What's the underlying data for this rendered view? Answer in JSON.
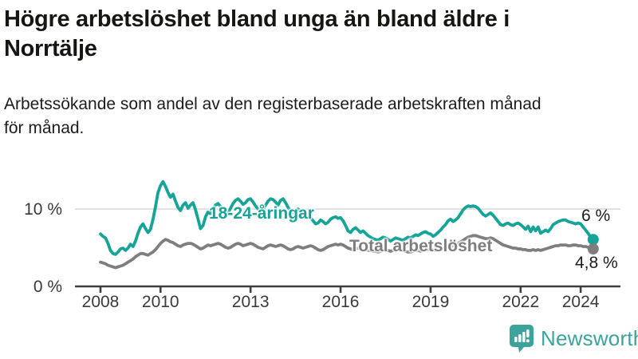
{
  "header": {
    "title": "Högre arbetslöshet bland unga än bland äldre i\nNorrtälje",
    "subtitle": "Arbetssökande som andel av den registerbaserade arbetskraften månad\nför månad."
  },
  "branding": {
    "logo_text": "Newsworthy",
    "logo_color": "#3ba39c"
  },
  "chart_data": {
    "type": "line",
    "title": "Högre arbetslöshet bland unga än bland äldre i Norrtälje",
    "subtitle": "Arbetssökande som andel av den registerbaserade arbetskraften månad för månad.",
    "xlabel": "",
    "ylabel": "",
    "ylim": [
      0,
      14
    ],
    "xlim": [
      2007.8,
      2025.3
    ],
    "grid": "horizontal-10-only",
    "legend_position": "inline-labels",
    "x_start_year": 2008,
    "x_step_months": 1,
    "y_ticks": [
      {
        "value": 10,
        "label": "10 %"
      },
      {
        "value": 0,
        "label": "0 %"
      }
    ],
    "x_ticks": [
      {
        "value": 2008,
        "label": "2008"
      },
      {
        "value": 2010,
        "label": "2010"
      },
      {
        "value": 2013,
        "label": "2013"
      },
      {
        "value": 2016,
        "label": "2016"
      },
      {
        "value": 2019,
        "label": "2019"
      },
      {
        "value": 2022,
        "label": "2022"
      },
      {
        "value": 2024,
        "label": "2024"
      }
    ],
    "series": [
      {
        "name": "18-24-åringar",
        "color": "#16a398",
        "end_label": "6 %",
        "end_value": 6.0,
        "values": [
          6.7,
          6.4,
          6.2,
          5.5,
          4.6,
          4.2,
          4.1,
          4.4,
          4.8,
          4.9,
          4.6,
          4.9,
          5.4,
          5.1,
          5.8,
          6.8,
          7.6,
          8.0,
          7.4,
          6.9,
          7.3,
          8.6,
          10.2,
          12.0,
          12.9,
          13.4,
          12.8,
          12.0,
          11.4,
          11.8,
          10.9,
          10.1,
          9.7,
          10.4,
          10.7,
          10.0,
          10.4,
          10.7,
          9.8,
          8.6,
          7.4,
          7.8,
          8.9,
          9.5,
          9.3,
          9.8,
          10.4,
          10.6,
          10.2,
          9.6,
          9.1,
          9.4,
          10.0,
          10.6,
          11.0,
          11.2,
          10.9,
          10.5,
          10.7,
          11.1,
          11.2,
          10.8,
          10.3,
          9.9,
          9.6,
          9.9,
          10.4,
          10.9,
          11.2,
          11.1,
          10.8,
          10.4,
          11.0,
          11.2,
          10.7,
          10.1,
          9.7,
          9.4,
          9.6,
          9.9,
          9.6,
          9.2,
          8.9,
          8.8,
          8.8,
          8.4,
          8.0,
          8.1,
          8.5,
          8.3,
          8.0,
          8.2,
          8.6,
          8.8,
          8.9,
          8.7,
          8.8,
          8.4,
          7.8,
          7.1,
          6.9,
          7.3,
          7.5,
          7.2,
          6.9,
          7.1,
          6.8,
          6.5,
          6.3,
          6.1,
          6.0,
          5.9,
          6.1,
          6.3,
          6.2,
          6.0,
          5.8,
          6.0,
          6.2,
          6.1,
          6.0,
          5.9,
          6.1,
          6.3,
          6.2,
          6.4,
          6.6,
          6.5,
          6.7,
          6.9,
          7.0,
          6.8,
          6.7,
          6.4,
          6.6,
          6.9,
          7.2,
          7.6,
          7.9,
          8.4,
          8.6,
          8.3,
          8.5,
          8.8,
          9.3,
          9.8,
          10.1,
          10.3,
          10.2,
          10.3,
          10.2,
          10.0,
          9.6,
          9.2,
          9.0,
          9.2,
          9.4,
          9.1,
          8.7,
          8.3,
          7.9,
          7.8,
          8.0,
          8.1,
          7.9,
          7.8,
          8.0,
          8.1,
          7.9,
          7.6,
          7.3,
          7.7,
          7.0,
          7.6,
          7.1,
          7.6,
          6.8,
          7.0,
          7.2,
          7.0,
          7.4,
          7.9,
          8.1,
          8.3,
          8.4,
          8.5,
          8.5,
          8.3,
          8.2,
          8.1,
          8.0,
          8.1,
          8.0,
          7.6,
          7.2,
          6.8,
          6.3,
          6.0
        ]
      },
      {
        "name": "Total arbetslöshet",
        "color": "#7e7e7e",
        "end_label": "4,8 %",
        "end_value": 4.8,
        "values": [
          3.1,
          3.0,
          2.9,
          2.7,
          2.6,
          2.5,
          2.4,
          2.5,
          2.6,
          2.7,
          2.9,
          3.1,
          3.3,
          3.5,
          3.8,
          4.0,
          4.2,
          4.2,
          4.1,
          4.0,
          4.2,
          4.4,
          4.7,
          5.1,
          5.5,
          5.8,
          6.0,
          5.9,
          5.7,
          5.6,
          5.4,
          5.2,
          5.1,
          5.3,
          5.4,
          5.5,
          5.5,
          5.4,
          5.2,
          5.0,
          4.8,
          4.9,
          5.1,
          5.3,
          5.2,
          5.3,
          5.4,
          5.5,
          5.4,
          5.2,
          5.0,
          4.9,
          5.0,
          5.2,
          5.4,
          5.5,
          5.4,
          5.2,
          5.3,
          5.4,
          5.5,
          5.4,
          5.2,
          5.0,
          4.9,
          4.8,
          5.0,
          5.2,
          5.3,
          5.2,
          5.1,
          5.2,
          5.3,
          5.2,
          5.0,
          4.8,
          4.7,
          4.8,
          5.0,
          5.1,
          5.0,
          4.9,
          5.0,
          5.1,
          5.2,
          5.1,
          4.9,
          4.7,
          4.6,
          4.7,
          4.9,
          5.1,
          5.2,
          5.3,
          5.4,
          5.3,
          5.4,
          5.3,
          5.1,
          4.9,
          4.8,
          4.7,
          4.8,
          4.9,
          4.8,
          4.7,
          4.7,
          4.6,
          4.6,
          4.5,
          4.5,
          4.4,
          4.5,
          4.6,
          4.7,
          4.6,
          4.5,
          4.6,
          4.7,
          4.7,
          4.7,
          4.6,
          4.5,
          4.4,
          4.4,
          4.5,
          4.6,
          4.6,
          4.5,
          4.6,
          4.7,
          4.7,
          4.8,
          4.7,
          4.6,
          4.6,
          4.7,
          4.8,
          5.0,
          5.1,
          5.1,
          5.2,
          5.3,
          5.5,
          5.7,
          5.9,
          6.1,
          6.3,
          6.4,
          6.5,
          6.5,
          6.4,
          6.3,
          6.2,
          6.1,
          6.1,
          6.2,
          6.1,
          5.9,
          5.7,
          5.5,
          5.3,
          5.2,
          5.1,
          5.0,
          4.9,
          4.9,
          4.8,
          4.8,
          4.7,
          4.7,
          4.6,
          4.6,
          4.7,
          4.6,
          4.7,
          4.6,
          4.7,
          4.8,
          4.9,
          5.0,
          5.1,
          5.2,
          5.2,
          5.3,
          5.3,
          5.3,
          5.2,
          5.2,
          5.3,
          5.3,
          5.2,
          5.2,
          5.1,
          5.1,
          5.0,
          4.9,
          4.8
        ]
      }
    ]
  }
}
